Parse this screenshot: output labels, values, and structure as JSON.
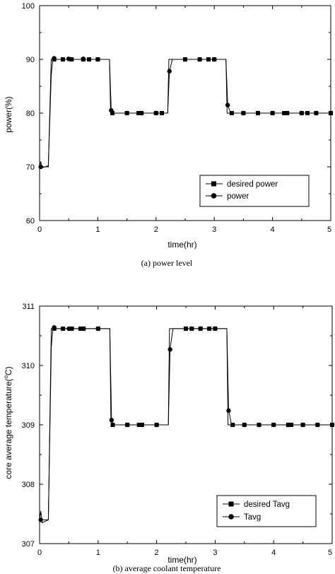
{
  "chart_data": [
    {
      "type": "line",
      "caption": "(a) power level",
      "xlabel": "time(hr)",
      "ylabel": "power(%)",
      "xlim": [
        0,
        5
      ],
      "ylim": [
        60,
        100
      ],
      "xticks": [
        "0",
        "1",
        "2",
        "3",
        "4",
        "5"
      ],
      "yticks": [
        "60",
        "70",
        "80",
        "90",
        "100"
      ],
      "legend_position": "bottom-right",
      "series": [
        {
          "name": "desired power",
          "marker": "square",
          "line": [
            [
              0,
              70
            ],
            [
              0.15,
              70
            ],
            [
              0.2,
              90
            ],
            [
              1.2,
              90
            ],
            [
              1.22,
              80
            ],
            [
              2.2,
              80
            ],
            [
              2.22,
              90
            ],
            [
              3.2,
              90
            ],
            [
              3.22,
              80
            ],
            [
              5,
              80
            ]
          ],
          "points": [
            [
              0.25,
              90
            ],
            [
              0.4,
              90
            ],
            [
              0.55,
              90
            ],
            [
              0.75,
              90
            ],
            [
              0.85,
              90
            ],
            [
              1.0,
              90
            ],
            [
              1.25,
              80
            ],
            [
              1.5,
              80
            ],
            [
              1.7,
              80
            ],
            [
              1.75,
              80
            ],
            [
              2.0,
              80
            ],
            [
              2.1,
              80
            ],
            [
              2.5,
              90
            ],
            [
              2.75,
              90
            ],
            [
              2.9,
              90
            ],
            [
              3.0,
              90
            ],
            [
              3.3,
              80
            ],
            [
              3.5,
              80
            ],
            [
              3.75,
              80
            ],
            [
              4.0,
              80
            ],
            [
              4.2,
              80
            ],
            [
              4.25,
              80
            ],
            [
              4.5,
              80
            ],
            [
              4.6,
              80
            ],
            [
              4.75,
              80
            ],
            [
              5.0,
              80
            ]
          ]
        },
        {
          "name": "power",
          "marker": "circle",
          "line": [
            [
              0,
              70
            ],
            [
              0.02,
              71
            ],
            [
              0.04,
              69.8
            ],
            [
              0.15,
              70.2
            ],
            [
              0.2,
              87
            ],
            [
              0.23,
              90.2
            ],
            [
              0.3,
              90
            ],
            [
              1.2,
              90
            ],
            [
              1.23,
              80.6
            ],
            [
              1.28,
              80
            ],
            [
              2.2,
              80
            ],
            [
              2.23,
              87.8
            ],
            [
              2.28,
              90
            ],
            [
              3.2,
              90
            ],
            [
              3.23,
              81.5
            ],
            [
              3.28,
              80
            ],
            [
              5,
              80
            ]
          ],
          "points": [
            [
              0.02,
              70
            ],
            [
              0.25,
              90.2
            ],
            [
              0.5,
              90.1
            ],
            [
              0.75,
              90.1
            ],
            [
              1.0,
              90
            ],
            [
              1.23,
              80.5
            ],
            [
              1.5,
              80
            ],
            [
              1.75,
              80
            ],
            [
              2.0,
              80
            ],
            [
              2.23,
              87.8
            ],
            [
              2.5,
              90
            ],
            [
              2.75,
              90
            ],
            [
              3.0,
              90
            ],
            [
              3.23,
              81.5
            ],
            [
              3.5,
              80
            ],
            [
              3.75,
              80
            ],
            [
              4.0,
              80
            ],
            [
              4.25,
              80
            ],
            [
              4.5,
              80
            ],
            [
              4.75,
              80
            ],
            [
              5.0,
              80
            ]
          ]
        }
      ]
    },
    {
      "type": "line",
      "caption": "(b) average coolant temperature",
      "xlabel": "time(hr)",
      "ylabel_main": "core average temperature(",
      "ylabel_sup": "o",
      "ylabel_tail": "C)",
      "xlim": [
        0,
        5
      ],
      "ylim": [
        307,
        311
      ],
      "xticks": [
        "0",
        "1",
        "2",
        "3",
        "4",
        "5"
      ],
      "yticks": [
        "307",
        "308",
        "309",
        "310",
        "311"
      ],
      "legend_position": "bottom-right",
      "series": [
        {
          "name": "desired Tavg",
          "marker": "square",
          "line": [
            [
              0,
              307.4
            ],
            [
              0.15,
              307.4
            ],
            [
              0.2,
              310.62
            ],
            [
              1.2,
              310.62
            ],
            [
              1.22,
              309.0
            ],
            [
              2.2,
              309.0
            ],
            [
              2.22,
              310.62
            ],
            [
              3.2,
              310.62
            ],
            [
              3.22,
              309.0
            ],
            [
              5,
              309.0
            ]
          ],
          "points": [
            [
              0.25,
              310.62
            ],
            [
              0.4,
              310.62
            ],
            [
              0.55,
              310.62
            ],
            [
              0.7,
              310.62
            ],
            [
              0.75,
              310.62
            ],
            [
              1.0,
              310.62
            ],
            [
              1.25,
              309.0
            ],
            [
              1.5,
              309.0
            ],
            [
              1.7,
              309.0
            ],
            [
              1.75,
              309.0
            ],
            [
              2.0,
              309.0
            ],
            [
              2.5,
              310.62
            ],
            [
              2.6,
              310.62
            ],
            [
              2.75,
              310.62
            ],
            [
              2.9,
              310.62
            ],
            [
              3.0,
              310.62
            ],
            [
              3.3,
              309.0
            ],
            [
              3.5,
              309.0
            ],
            [
              3.75,
              309.0
            ],
            [
              4.0,
              309.0
            ],
            [
              4.25,
              309.0
            ],
            [
              4.3,
              309.0
            ],
            [
              4.5,
              309.0
            ],
            [
              4.75,
              309.0
            ],
            [
              5.0,
              309.0
            ]
          ]
        },
        {
          "name": "Tavg",
          "marker": "circle",
          "line": [
            [
              0,
              307.4
            ],
            [
              0.02,
              307.55
            ],
            [
              0.04,
              307.35
            ],
            [
              0.15,
              307.4
            ],
            [
              0.2,
              310.3
            ],
            [
              0.23,
              310.65
            ],
            [
              0.3,
              310.62
            ],
            [
              1.2,
              310.62
            ],
            [
              1.23,
              309.07
            ],
            [
              1.28,
              309.0
            ],
            [
              2.2,
              309.0
            ],
            [
              2.23,
              310.28
            ],
            [
              2.28,
              310.62
            ],
            [
              3.2,
              310.62
            ],
            [
              3.23,
              309.25
            ],
            [
              3.28,
              309.0
            ],
            [
              5,
              309.0
            ]
          ],
          "points": [
            [
              0.02,
              307.4
            ],
            [
              0.25,
              310.64
            ],
            [
              0.5,
              310.62
            ],
            [
              0.75,
              310.62
            ],
            [
              1.0,
              310.62
            ],
            [
              1.23,
              309.08
            ],
            [
              1.5,
              309.0
            ],
            [
              1.75,
              309.0
            ],
            [
              2.0,
              309.0
            ],
            [
              2.23,
              310.27
            ],
            [
              2.5,
              310.62
            ],
            [
              2.75,
              310.62
            ],
            [
              3.0,
              310.62
            ],
            [
              3.23,
              309.24
            ],
            [
              3.5,
              309.0
            ],
            [
              3.75,
              309.0
            ],
            [
              4.0,
              309.0
            ],
            [
              4.25,
              309.0
            ],
            [
              4.5,
              309.0
            ],
            [
              4.75,
              309.0
            ],
            [
              5.0,
              309.0
            ]
          ]
        }
      ]
    }
  ]
}
